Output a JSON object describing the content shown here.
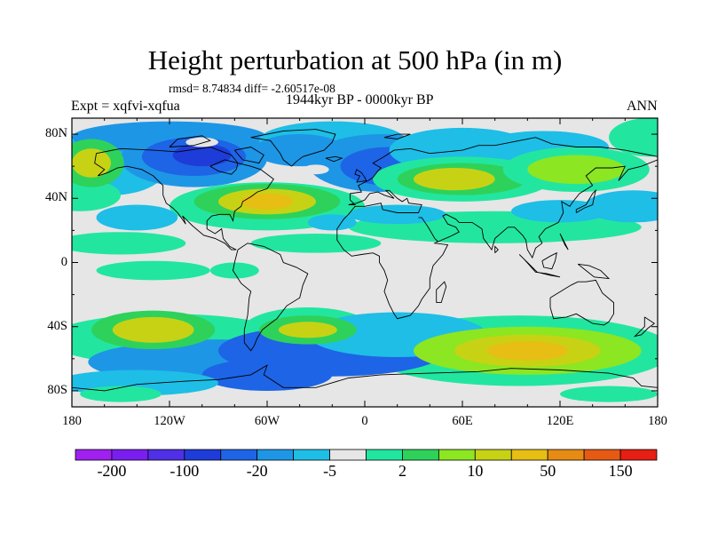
{
  "title": "Height perturbation at 500 hPa (in m)",
  "stats": "rmsd= 8.74834 diff= -2.60517e-08",
  "experiment": "Expt = xqfvi-xqfua",
  "period": "1944kyr BP - 0000kyr BP",
  "season": "ANN",
  "map": {
    "lon_range": [
      -180,
      180
    ],
    "lat_range": [
      -90,
      90
    ],
    "x_ticks": [
      "180",
      "120W",
      "60W",
      "0",
      "60E",
      "120E",
      "180"
    ],
    "y_ticks": [
      "80N",
      "40N",
      "0",
      "40S",
      "80S"
    ]
  },
  "colorbar": {
    "labels": [
      "-200",
      "-100",
      "-20",
      "-5",
      "2",
      "10",
      "50",
      "150"
    ],
    "colors": [
      "#a020f0",
      "#7a1ef0",
      "#5030e6",
      "#1e3cd8",
      "#1e64e6",
      "#1e96e6",
      "#1ebee6",
      "#e6e6e6",
      "#22e6a0",
      "#2ed25a",
      "#8ce622",
      "#c8d214",
      "#e6be14",
      "#e68c14",
      "#e65a14",
      "#e61e14"
    ]
  },
  "field_colors": {
    "neutral": "#e6e6e6",
    "light_blue": "#1ebee6",
    "mid_blue": "#1e96e6",
    "blue": "#1e64e6",
    "dark_blue": "#1e3cd8",
    "teal": "#22e6a0",
    "green": "#2ed25a",
    "yellow_green": "#8ce622",
    "olive": "#c8d214",
    "orange": "#e6be14"
  }
}
